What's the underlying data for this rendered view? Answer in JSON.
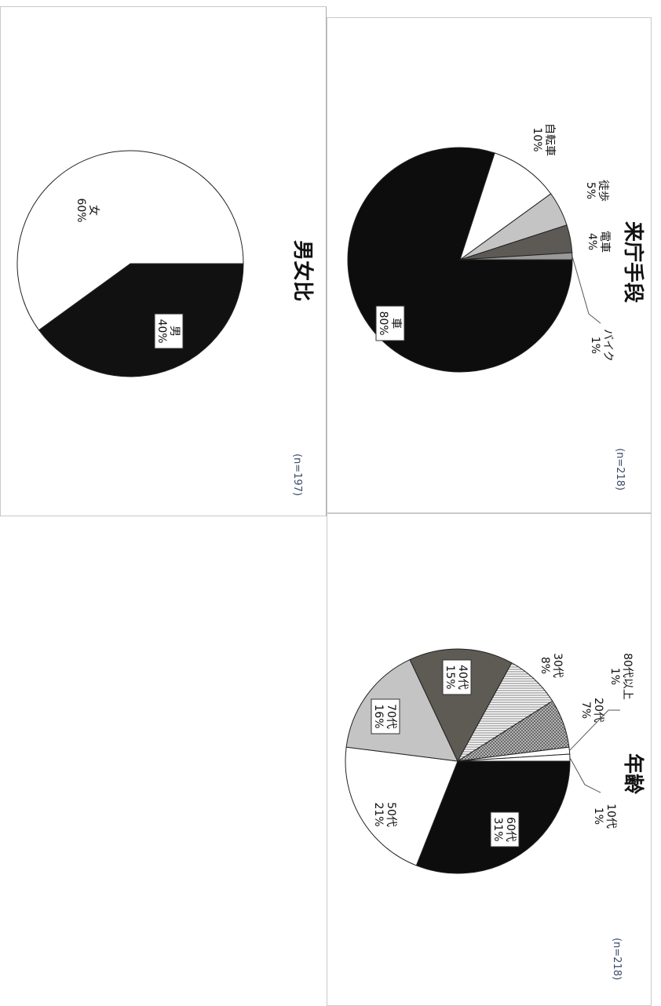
{
  "chart_data": [
    {
      "type": "pie",
      "title": "男女比",
      "n_label": "(n=197)",
      "slices": [
        {
          "label": "男",
          "pct_label": "40%",
          "value": 40,
          "color": "#111111"
        },
        {
          "label": "女",
          "pct_label": "60%",
          "value": 60,
          "color": "#ffffff"
        }
      ]
    },
    {
      "type": "pie",
      "title": "来庁手段",
      "n_label": "(n=218)",
      "slices": [
        {
          "label": "車",
          "pct_label": "80%",
          "value": 80,
          "color": "#0d0d0d"
        },
        {
          "label": "自転車",
          "pct_label": "10%",
          "value": 10,
          "color": "#ffffff"
        },
        {
          "label": "徒歩",
          "pct_label": "5%",
          "value": 5,
          "color": "#c4c4c4"
        },
        {
          "label": "電車",
          "pct_label": "4%",
          "value": 4,
          "color": "#5d5a55"
        },
        {
          "label": "バイク",
          "pct_label": "1%",
          "value": 1,
          "color": "#9a9a9a"
        }
      ]
    },
    {
      "type": "pie",
      "title": "年齢",
      "n_label": "(n=218)",
      "slices": [
        {
          "label": "60代",
          "pct_label": "31%",
          "value": 31,
          "color": "#0d0d0d"
        },
        {
          "label": "50代",
          "pct_label": "21%",
          "value": 21,
          "color": "#ffffff"
        },
        {
          "label": "70代",
          "pct_label": "16%",
          "value": 16,
          "color": "#c4c4c4"
        },
        {
          "label": "40代",
          "pct_label": "15%",
          "value": 15,
          "color": "#5e5a54"
        },
        {
          "label": "30代",
          "pct_label": "8%",
          "value": 8,
          "color": "#dcdcdc"
        },
        {
          "label": "20代",
          "pct_label": "7%",
          "value": 7,
          "color": "#8a8a8a"
        },
        {
          "label": "80代以上",
          "pct_label": "1%",
          "value": 1,
          "color": "#ffffff"
        },
        {
          "label": "10代",
          "pct_label": "1%",
          "value": 1,
          "color": "#ffffff"
        }
      ]
    }
  ]
}
